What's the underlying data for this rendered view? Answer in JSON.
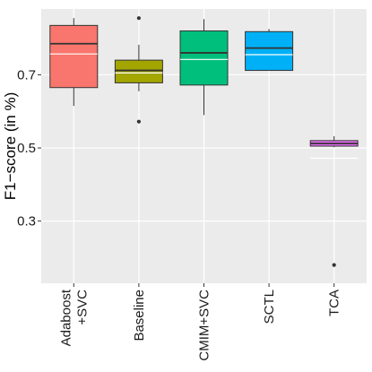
{
  "chart_data": {
    "type": "boxplot",
    "ylabel": "F1−score (in %)",
    "xlabel": "",
    "ylim": [
      0.13,
      0.88
    ],
    "yticks": [
      0.3,
      0.5,
      0.7
    ],
    "ytick_labels": [
      "0.3",
      "0.5",
      "0.7"
    ],
    "grid": true,
    "background": "#ebebeb",
    "categories": [
      "Adaboost\n+SVC",
      "Baseline",
      "CMIM+SVC",
      "SCTL",
      "TCA"
    ],
    "boxes": [
      {
        "label": "Adaboost\n+SVC",
        "min": 0.615,
        "q1": 0.665,
        "median": 0.785,
        "q3": 0.835,
        "max": 0.855,
        "mean": 0.757,
        "outliers": [],
        "color": "#F8766D"
      },
      {
        "label": "Baseline",
        "min": 0.655,
        "q1": 0.678,
        "median": 0.712,
        "q3": 0.74,
        "max": 0.782,
        "mean": 0.705,
        "outliers": [
          0.855,
          0.572
        ],
        "color": "#A3A500"
      },
      {
        "label": "CMIM+SVC",
        "min": 0.59,
        "q1": 0.672,
        "median": 0.76,
        "q3": 0.82,
        "max": 0.852,
        "mean": 0.742,
        "outliers": [],
        "color": "#00BF7D"
      },
      {
        "label": "SCTL",
        "min": 0.712,
        "q1": 0.712,
        "median": 0.773,
        "q3": 0.818,
        "max": 0.825,
        "mean": 0.755,
        "outliers": [],
        "color": "#00B0F6"
      },
      {
        "label": "TCA",
        "min": 0.502,
        "q1": 0.505,
        "median": 0.512,
        "q3": 0.52,
        "max": 0.532,
        "mean": 0.472,
        "outliers": [
          0.18
        ],
        "color": "#E76BF3"
      }
    ]
  }
}
